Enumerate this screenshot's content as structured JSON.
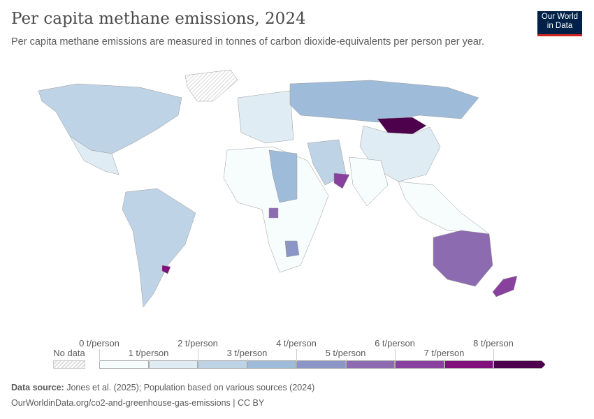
{
  "header": {
    "title": "Per capita methane emissions, 2024",
    "subtitle": "Per capita methane emissions are measured in tonnes of carbon dioxide-equivalents per person per year.",
    "logo": "Our World in Data"
  },
  "legend": {
    "no_data": "No data",
    "bins": [
      {
        "label": "0 t/person",
        "color": "#f7fcfd"
      },
      {
        "label": "1 t/person",
        "color": "#e0ecf4"
      },
      {
        "label": "2 t/person",
        "color": "#bfd3e6"
      },
      {
        "label": "3 t/person",
        "color": "#9ebcda"
      },
      {
        "label": "4 t/person",
        "color": "#8c96c6"
      },
      {
        "label": "5 t/person",
        "color": "#8c6bb1"
      },
      {
        "label": "6 t/person",
        "color": "#88419d"
      },
      {
        "label": "7 t/person",
        "color": "#810f7c"
      },
      {
        "label": "8 t/person",
        "color": "#4d004b"
      }
    ]
  },
  "map": {
    "regions": [
      {
        "name": "North America",
        "value": 2.5
      },
      {
        "name": "Greenland",
        "value": null
      },
      {
        "name": "Mexico",
        "value": 1.2
      },
      {
        "name": "South America",
        "value": 2.6
      },
      {
        "name": "Uruguay",
        "value": 7.5
      },
      {
        "name": "Europe",
        "value": 1.2
      },
      {
        "name": "Russia",
        "value": 3.3
      },
      {
        "name": "Mongolia",
        "value": 9
      },
      {
        "name": "China",
        "value": 1.3
      },
      {
        "name": "Africa",
        "value": 0.8
      },
      {
        "name": "Sahel",
        "value": 3.2
      },
      {
        "name": "Middle East",
        "value": 2.8
      },
      {
        "name": "Oman",
        "value": 6
      },
      {
        "name": "India",
        "value": 0.7
      },
      {
        "name": "Southeast Asia",
        "value": 0.8
      },
      {
        "name": "Australia",
        "value": 5.8
      },
      {
        "name": "New Zealand",
        "value": 6.3
      },
      {
        "name": "Botswana",
        "value": 4.5
      },
      {
        "name": "Gabon",
        "value": 5
      }
    ]
  },
  "footer": {
    "source_label": "Data source:",
    "source": "Jones et al. (2025); Population based on various sources (2024)",
    "url": "OurWorldinData.org/co2-and-greenhouse-gas-emissions | CC BY"
  }
}
